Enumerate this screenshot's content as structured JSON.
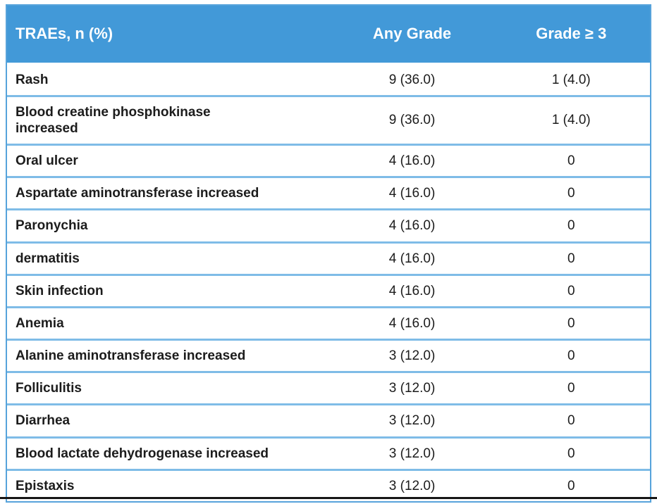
{
  "colors": {
    "header_background": "#4299D8",
    "outer_border": "#57A3DB",
    "row_divider": "#7FBCE7",
    "header_text": "#FFFFFF",
    "body_text": "#1C1C1C",
    "bottom_rule": "#161616"
  },
  "table": {
    "headers": [
      {
        "label": "TRAEs, n (%)"
      },
      {
        "label": "Any Grade"
      },
      {
        "label": "Grade ≥ 3"
      }
    ],
    "rows": [
      {
        "event": "Rash",
        "any_grade": "9 (36.0)",
        "grade_ge3": "1 (4.0)"
      },
      {
        "event": "Blood creatine phosphokinase\nincreased",
        "any_grade": "9 (36.0)",
        "grade_ge3": "1 (4.0)"
      },
      {
        "event": "Oral ulcer",
        "any_grade": "4 (16.0)",
        "grade_ge3": "0"
      },
      {
        "event": "Aspartate aminotransferase increased",
        "any_grade": "4 (16.0)",
        "grade_ge3": "0"
      },
      {
        "event": "Paronychia",
        "any_grade": "4 (16.0)",
        "grade_ge3": "0"
      },
      {
        "event": "dermatitis",
        "any_grade": "4 (16.0)",
        "grade_ge3": "0"
      },
      {
        "event": "Skin infection",
        "any_grade": "4 (16.0)",
        "grade_ge3": "0"
      },
      {
        "event": "Anemia",
        "any_grade": "4 (16.0)",
        "grade_ge3": "0"
      },
      {
        "event": "Alanine aminotransferase increased",
        "any_grade": "3 (12.0)",
        "grade_ge3": "0"
      },
      {
        "event": "Folliculitis",
        "any_grade": "3 (12.0)",
        "grade_ge3": "0"
      },
      {
        "event": "Diarrhea",
        "any_grade": "3 (12.0)",
        "grade_ge3": "0"
      },
      {
        "event": "Blood lactate dehydrogenase increased",
        "any_grade": "3 (12.0)",
        "grade_ge3": "0"
      },
      {
        "event": "Epistaxis",
        "any_grade": "3 (12.0)",
        "grade_ge3": "0"
      }
    ]
  },
  "chart_data": {
    "type": "table",
    "title": "TRAEs, n (%)",
    "columns": [
      "TRAEs, n (%)",
      "Any Grade",
      "Grade ≥ 3"
    ],
    "rows": [
      [
        "Rash",
        "9 (36.0)",
        "1 (4.0)"
      ],
      [
        "Blood creatine phosphokinase increased",
        "9 (36.0)",
        "1 (4.0)"
      ],
      [
        "Oral ulcer",
        "4 (16.0)",
        "0"
      ],
      [
        "Aspartate aminotransferase increased",
        "4 (16.0)",
        "0"
      ],
      [
        "Paronychia",
        "4 (16.0)",
        "0"
      ],
      [
        "dermatitis",
        "4 (16.0)",
        "0"
      ],
      [
        "Skin infection",
        "4 (16.0)",
        "0"
      ],
      [
        "Anemia",
        "4 (16.0)",
        "0"
      ],
      [
        "Alanine aminotransferase increased",
        "3 (12.0)",
        "0"
      ],
      [
        "Folliculitis",
        "3 (12.0)",
        "0"
      ],
      [
        "Diarrhea",
        "3 (12.0)",
        "0"
      ],
      [
        "Blood lactate dehydrogenase increased",
        "3 (12.0)",
        "0"
      ],
      [
        "Epistaxis",
        "3 (12.0)",
        "0"
      ]
    ]
  }
}
